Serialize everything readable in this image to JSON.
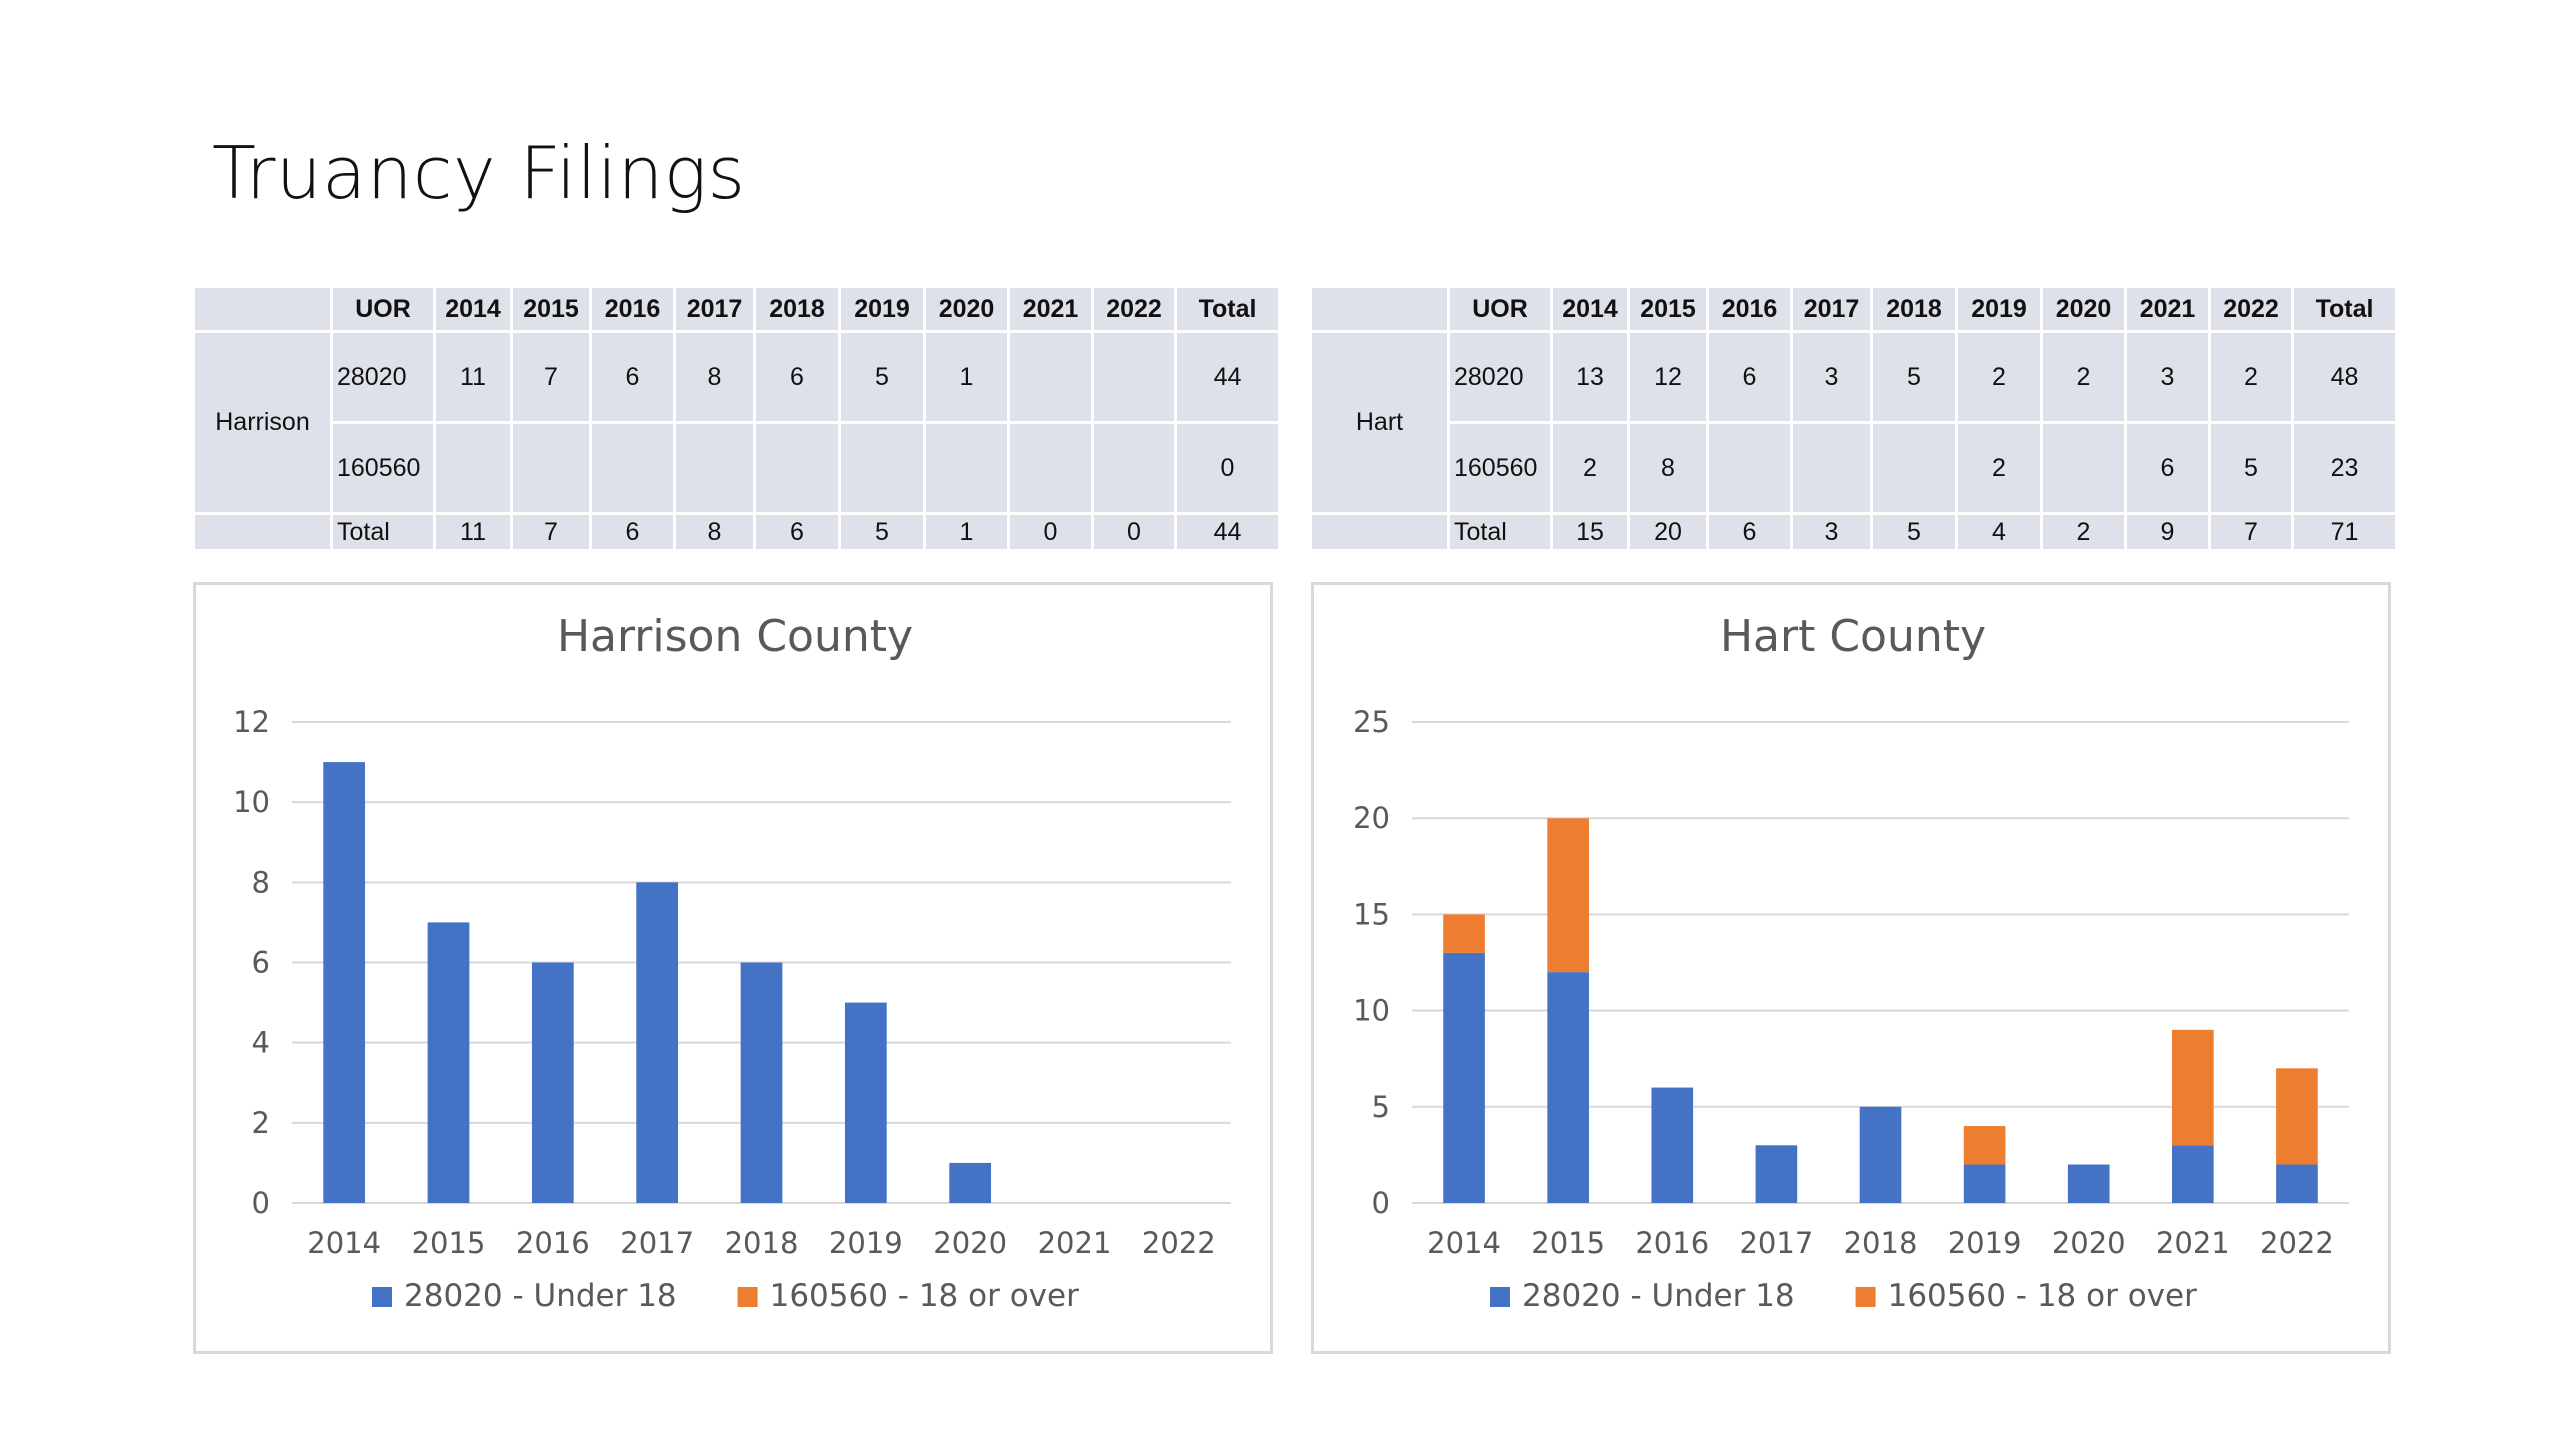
{
  "page_title": "Truancy Filings",
  "colors": {
    "under18": "#4472c4",
    "over18": "#ed7d31",
    "grid": "#d9d9d9",
    "table_bg": "#dfe1ea"
  },
  "tables": [
    {
      "county": "Harrison",
      "headers": [
        "UOR",
        "2014",
        "2015",
        "2016",
        "2017",
        "2018",
        "2019",
        "2020",
        "2021",
        "2022",
        "Total"
      ],
      "rows": [
        [
          "28020",
          "11",
          "7",
          "6",
          "8",
          "6",
          "5",
          "1",
          "",
          "",
          "44"
        ],
        [
          "160560",
          "",
          "",
          "",
          "",
          "",
          "",
          "",
          "",
          "",
          "0"
        ],
        [
          "Total",
          "11",
          "7",
          "6",
          "8",
          "6",
          "5",
          "1",
          "0",
          "0",
          "44"
        ]
      ]
    },
    {
      "county": "Hart",
      "headers": [
        "UOR",
        "2014",
        "2015",
        "2016",
        "2017",
        "2018",
        "2019",
        "2020",
        "2021",
        "2022",
        "Total"
      ],
      "rows": [
        [
          "28020",
          "13",
          "12",
          "6",
          "3",
          "5",
          "2",
          "2",
          "3",
          "2",
          "48"
        ],
        [
          "160560",
          "2",
          "8",
          "",
          "",
          "",
          "2",
          "",
          "6",
          "5",
          "23"
        ],
        [
          "Total",
          "15",
          "20",
          "6",
          "3",
          "5",
          "4",
          "2",
          "9",
          "7",
          "71"
        ]
      ]
    }
  ],
  "chart_data": [
    {
      "type": "bar",
      "stacked": true,
      "title": "Harrison County",
      "categories": [
        "2014",
        "2015",
        "2016",
        "2017",
        "2018",
        "2019",
        "2020",
        "2021",
        "2022"
      ],
      "series": [
        {
          "name": "28020 - Under 18",
          "values": [
            11,
            7,
            6,
            8,
            6,
            5,
            1,
            0,
            0
          ],
          "color": "#4472c4"
        },
        {
          "name": "160560 - 18 or over",
          "values": [
            0,
            0,
            0,
            0,
            0,
            0,
            0,
            0,
            0
          ],
          "color": "#ed7d31"
        }
      ],
      "ylim": [
        0,
        12
      ],
      "yticks": [
        0,
        2,
        4,
        6,
        8,
        10,
        12
      ],
      "grid": true,
      "legend": "bottom"
    },
    {
      "type": "bar",
      "stacked": true,
      "title": "Hart County",
      "categories": [
        "2014",
        "2015",
        "2016",
        "2017",
        "2018",
        "2019",
        "2020",
        "2021",
        "2022"
      ],
      "series": [
        {
          "name": "28020 - Under 18",
          "values": [
            13,
            12,
            6,
            3,
            5,
            2,
            2,
            3,
            2
          ],
          "color": "#4472c4"
        },
        {
          "name": "160560 - 18 or over",
          "values": [
            2,
            8,
            0,
            0,
            0,
            2,
            0,
            6,
            5
          ],
          "color": "#ed7d31"
        }
      ],
      "ylim": [
        0,
        25
      ],
      "yticks": [
        0,
        5,
        10,
        15,
        20,
        25
      ],
      "grid": true,
      "legend": "bottom"
    }
  ]
}
